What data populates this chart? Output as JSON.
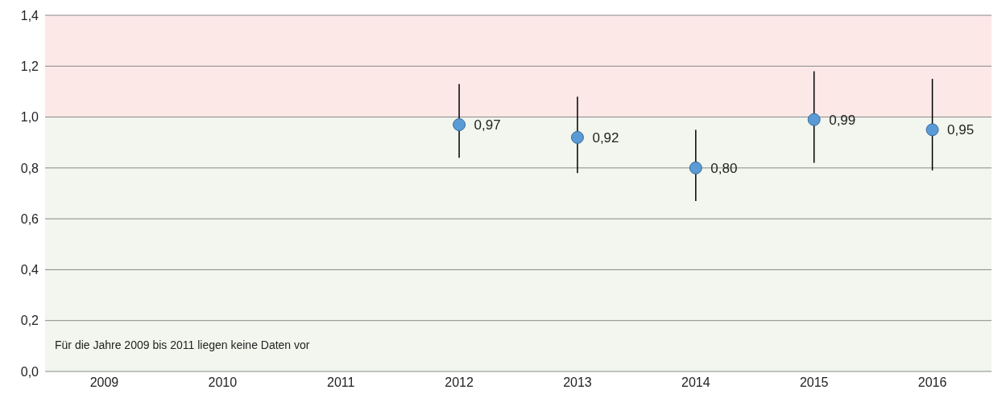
{
  "chart_data": {
    "type": "scatter",
    "categories": [
      "2009",
      "2010",
      "2011",
      "2012",
      "2013",
      "2014",
      "2015",
      "2016"
    ],
    "values": [
      null,
      null,
      null,
      0.97,
      0.92,
      0.8,
      0.99,
      0.95
    ],
    "errors": [
      null,
      null,
      null,
      [
        0.84,
        1.13
      ],
      [
        0.78,
        1.08
      ],
      [
        0.67,
        0.95
      ],
      [
        0.82,
        1.18
      ],
      [
        0.79,
        1.15
      ]
    ],
    "color": "#5b9bd5",
    "marker": "circle",
    "value_labels": [
      null,
      null,
      null,
      "0,97",
      "0,92",
      "0,80",
      "0,99",
      "0,95"
    ],
    "ylim": [
      0,
      1.4
    ],
    "yticks": [
      {
        "value": 0,
        "label": "0,0"
      },
      {
        "value": 0.2,
        "label": "0,2"
      },
      {
        "value": 0.4,
        "label": "0,4"
      },
      {
        "value": 0.6,
        "label": "0,6"
      },
      {
        "value": 0.8,
        "label": "0,8"
      },
      {
        "value": 1,
        "label": "1,0"
      },
      {
        "value": 1.2,
        "label": "1,2"
      },
      {
        "value": 1.4,
        "label": "1,4"
      }
    ],
    "bands": [
      {
        "axis": "y",
        "from": 0,
        "to": 1,
        "color": "#f2f6ee"
      },
      {
        "axis": "y",
        "from": 1,
        "to": 1.4,
        "color": "#fde8e8"
      }
    ],
    "grid": "y",
    "annotations": [
      "Für die Jahre 2009 bis 2011 liegen keine Daten vor"
    ]
  }
}
